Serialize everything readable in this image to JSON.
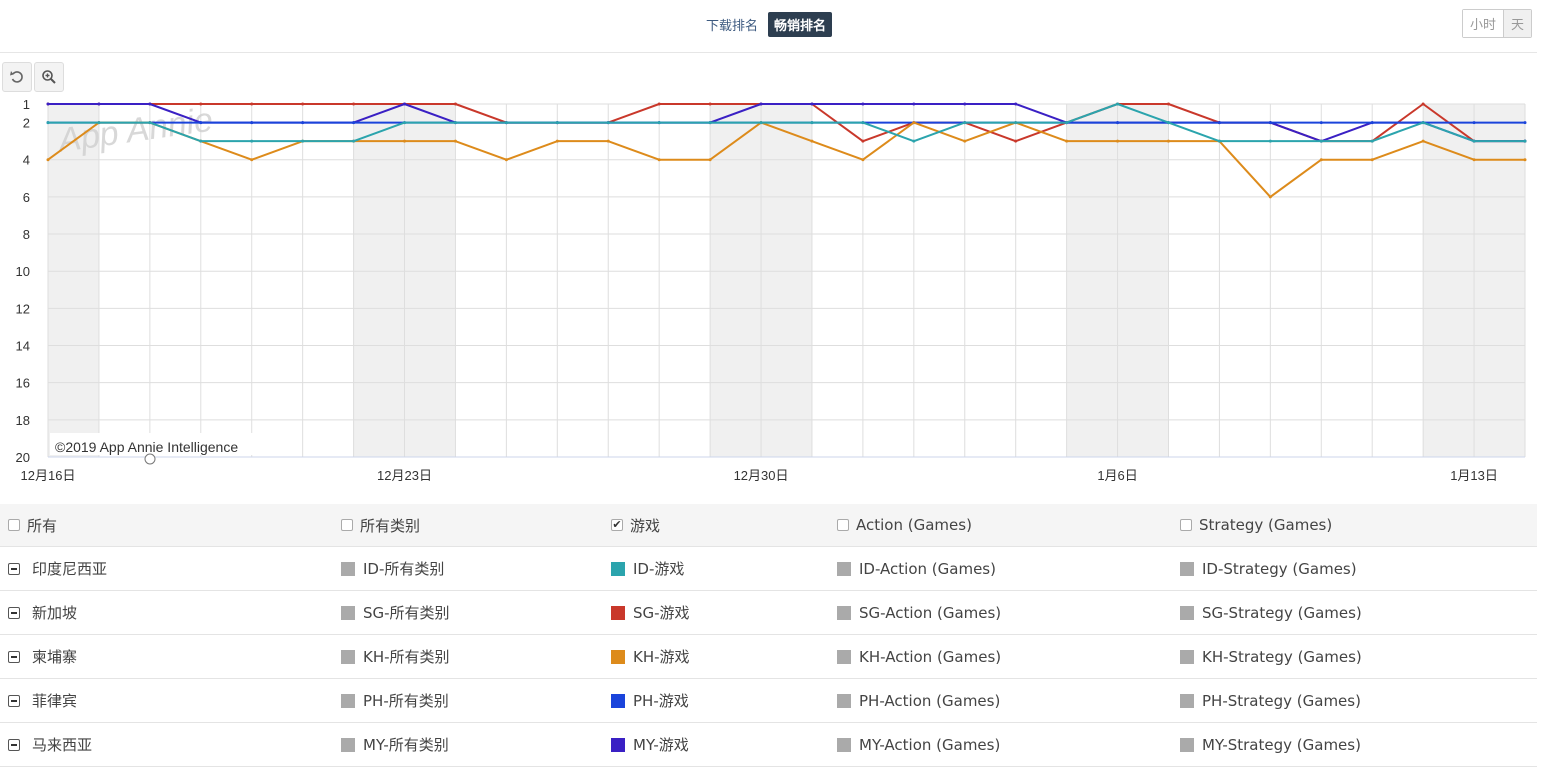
{
  "tabs": [
    {
      "label": "下载排名",
      "active": false
    },
    {
      "label": "畅销排名",
      "active": true
    }
  ],
  "granularity": [
    "小时",
    "天"
  ],
  "tools": [
    {
      "name": "reset-zoom-button",
      "icon": "undo-icon"
    },
    {
      "name": "zoom-button",
      "icon": "zoom-in-icon"
    }
  ],
  "chart_data": {
    "type": "line",
    "y_axis": {
      "reversed": true,
      "range": [
        1,
        20
      ],
      "ticks": [
        1,
        2,
        4,
        6,
        8,
        10,
        12,
        14,
        16,
        18,
        20
      ]
    },
    "x_axis": {
      "start": "12月16日",
      "tick_labels": [
        {
          "index": 0,
          "label": "12月16日"
        },
        {
          "index": 7,
          "label": "12月23日"
        },
        {
          "index": 14,
          "label": "12月30日"
        },
        {
          "index": 21,
          "label": "1月6日"
        },
        {
          "index": 28,
          "label": "1月13日"
        }
      ]
    },
    "weekend_bands": [
      [
        0,
        1
      ],
      [
        6,
        8
      ],
      [
        13,
        15
      ],
      [
        20,
        22
      ],
      [
        27,
        29
      ]
    ],
    "watermark": "App Annie",
    "credit": "©2019 App Annie Intelligence",
    "series": [
      {
        "name": "SG-游戏",
        "color": "#c9382b",
        "values": [
          1,
          1,
          1,
          1,
          1,
          1,
          1,
          1,
          1,
          2,
          2,
          2,
          1,
          1,
          1,
          1,
          3,
          2,
          2,
          3,
          2,
          1,
          1,
          2,
          2,
          3,
          3,
          1,
          3,
          3
        ]
      },
      {
        "name": "MY-游戏",
        "color": "#3a20c4",
        "values": [
          1,
          1,
          1,
          2,
          2,
          2,
          2,
          1,
          2,
          2,
          2,
          2,
          2,
          2,
          1,
          1,
          1,
          1,
          1,
          1,
          2,
          2,
          2,
          2,
          2,
          3,
          2,
          2,
          3,
          3
        ]
      },
      {
        "name": "PH-游戏",
        "color": "#1a44db",
        "values": [
          2,
          2,
          2,
          2,
          2,
          2,
          2,
          2,
          2,
          2,
          2,
          2,
          2,
          2,
          2,
          2,
          2,
          2,
          2,
          2,
          2,
          2,
          2,
          2,
          2,
          2,
          2,
          2,
          2,
          2
        ]
      },
      {
        "name": "KH-游戏",
        "color": "#dd8b1b",
        "values": [
          4,
          2,
          2,
          3,
          4,
          3,
          3,
          3,
          3,
          4,
          3,
          3,
          4,
          4,
          2,
          3,
          4,
          2,
          3,
          2,
          3,
          3,
          3,
          3,
          6,
          4,
          4,
          3,
          4,
          4
        ]
      },
      {
        "name": "ID-游戏",
        "color": "#2ba4ad",
        "values": [
          2,
          2,
          2,
          3,
          3,
          3,
          3,
          2,
          2,
          2,
          2,
          2,
          2,
          2,
          2,
          2,
          2,
          3,
          2,
          2,
          2,
          1,
          2,
          3,
          3,
          3,
          3,
          2,
          3,
          3
        ]
      }
    ]
  },
  "filters": {
    "header": [
      {
        "label": "所有",
        "checked": false
      },
      {
        "label": "所有类别",
        "checked": false
      },
      {
        "label": "游戏",
        "checked": true
      },
      {
        "label": "Action (Games)",
        "checked": false
      },
      {
        "label": "Strategy (Games)",
        "checked": false
      }
    ],
    "rows": [
      {
        "country": "印度尼西亚",
        "cells": [
          "ID-所有类别",
          "ID-游戏",
          "ID-Action (Games)",
          "ID-Strategy (Games)"
        ],
        "colors": [
          "#aaaaaa",
          "#2ba4ad",
          "#aaaaaa",
          "#aaaaaa"
        ]
      },
      {
        "country": "新加坡",
        "cells": [
          "SG-所有类别",
          "SG-游戏",
          "SG-Action (Games)",
          "SG-Strategy (Games)"
        ],
        "colors": [
          "#aaaaaa",
          "#c9382b",
          "#aaaaaa",
          "#aaaaaa"
        ]
      },
      {
        "country": "柬埔寨",
        "cells": [
          "KH-所有类别",
          "KH-游戏",
          "KH-Action (Games)",
          "KH-Strategy (Games)"
        ],
        "colors": [
          "#aaaaaa",
          "#dd8b1b",
          "#aaaaaa",
          "#aaaaaa"
        ]
      },
      {
        "country": "菲律宾",
        "cells": [
          "PH-所有类别",
          "PH-游戏",
          "PH-Action (Games)",
          "PH-Strategy (Games)"
        ],
        "colors": [
          "#aaaaaa",
          "#1a44db",
          "#aaaaaa",
          "#aaaaaa"
        ]
      },
      {
        "country": "马来西亚",
        "cells": [
          "MY-所有类别",
          "MY-游戏",
          "MY-Action (Games)",
          "MY-Strategy (Games)"
        ],
        "colors": [
          "#aaaaaa",
          "#3a20c4",
          "#aaaaaa",
          "#aaaaaa"
        ]
      }
    ]
  }
}
